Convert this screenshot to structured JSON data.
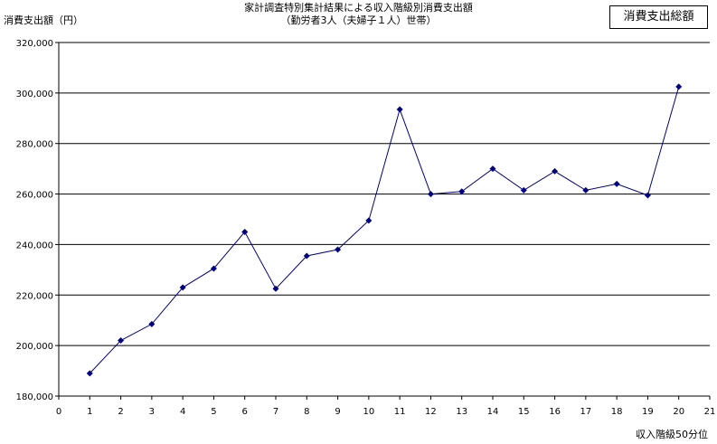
{
  "chart_data": {
    "type": "line",
    "title": "家計調査特別集計結果による収入階級別消費支出額",
    "subtitle": "（勤労者3人（夫婦子１人）世帯）",
    "ylabel": "消費支出額（円）",
    "xlabel": "収入階級50分位",
    "legend": "消費支出総額",
    "legend_position": "top-right",
    "grid": true,
    "xlim": [
      0,
      21
    ],
    "ylim": [
      180000,
      320000
    ],
    "x_ticks": [
      "0",
      "1",
      "2",
      "3",
      "4",
      "5",
      "6",
      "7",
      "8",
      "9",
      "10",
      "11",
      "12",
      "13",
      "14",
      "15",
      "16",
      "17",
      "18",
      "19",
      "20",
      "21"
    ],
    "y_ticks": [
      "180,000",
      "200,000",
      "220,000",
      "240,000",
      "260,000",
      "280,000",
      "300,000",
      "320,000"
    ],
    "series": [
      {
        "name": "消費支出総額",
        "color": "#000080",
        "x": [
          1,
          2,
          3,
          4,
          5,
          6,
          7,
          8,
          9,
          10,
          11,
          12,
          13,
          14,
          15,
          16,
          17,
          18,
          19,
          20
        ],
        "values": [
          189000,
          202000,
          208500,
          223000,
          230500,
          245000,
          222500,
          235500,
          238000,
          249500,
          293500,
          260000,
          261000,
          270000,
          261500,
          269000,
          261500,
          264000,
          259500,
          302500
        ]
      }
    ]
  }
}
